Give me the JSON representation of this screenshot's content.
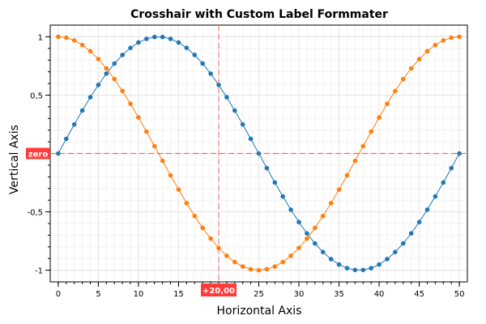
{
  "chart_data": {
    "type": "line",
    "title": "Crosshair with Custom Label Formmater",
    "xlabel": "Horizontal Axis",
    "ylabel": "Vertical Axis",
    "xlim": [
      -1,
      51
    ],
    "ylim": [
      -1.1,
      1.1
    ],
    "x_ticks": [
      0,
      5,
      10,
      15,
      20,
      25,
      30,
      35,
      40,
      45,
      50
    ],
    "x_tick_labels": [
      "0",
      "5",
      "10",
      "15",
      "",
      "25",
      "30",
      "35",
      "40",
      "45",
      "50"
    ],
    "y_ticks": [
      -1,
      -0.5,
      0,
      0.5,
      1
    ],
    "y_tick_labels": [
      "-1",
      "-0,5",
      "",
      "0,5",
      "1"
    ],
    "grid": true,
    "x": [
      0,
      1,
      2,
      3,
      4,
      5,
      6,
      7,
      8,
      9,
      10,
      11,
      12,
      13,
      14,
      15,
      16,
      17,
      18,
      19,
      20,
      21,
      22,
      23,
      24,
      25,
      26,
      27,
      28,
      29,
      30,
      31,
      32,
      33,
      34,
      35,
      36,
      37,
      38,
      39,
      40,
      41,
      42,
      43,
      44,
      45,
      46,
      47,
      48,
      49,
      50
    ],
    "series": [
      {
        "color": "#1f77b4",
        "values": [
          0,
          0.1253,
          0.2487,
          0.3681,
          0.4818,
          0.5878,
          0.6845,
          0.7705,
          0.8443,
          0.9048,
          0.9511,
          0.9823,
          0.998,
          0.998,
          0.9823,
          0.9511,
          0.9048,
          0.8443,
          0.7705,
          0.6845,
          0.5878,
          0.4818,
          0.3681,
          0.2487,
          0.1253,
          0,
          -0.1253,
          -0.2487,
          -0.3681,
          -0.4818,
          -0.5878,
          -0.6845,
          -0.7705,
          -0.8443,
          -0.9048,
          -0.9511,
          -0.9823,
          -0.998,
          -0.998,
          -0.9823,
          -0.9511,
          -0.9048,
          -0.8443,
          -0.7705,
          -0.6845,
          -0.5878,
          -0.4818,
          -0.3681,
          -0.2487,
          -0.1253,
          0
        ]
      },
      {
        "color": "#ff7f0e",
        "values": [
          1,
          0.9921,
          0.9686,
          0.9298,
          0.8763,
          0.809,
          0.729,
          0.6374,
          0.5358,
          0.4258,
          0.309,
          0.1874,
          0.0628,
          -0.0628,
          -0.1874,
          -0.309,
          -0.4258,
          -0.5358,
          -0.6374,
          -0.729,
          -0.809,
          -0.8763,
          -0.9298,
          -0.9686,
          -0.9921,
          -1,
          -0.9921,
          -0.9686,
          -0.9298,
          -0.8763,
          -0.809,
          -0.729,
          -0.6374,
          -0.5358,
          -0.4258,
          -0.309,
          -0.1874,
          -0.0628,
          0.0628,
          0.1874,
          0.309,
          0.4258,
          0.5358,
          0.6374,
          0.729,
          0.809,
          0.8763,
          0.9298,
          0.9686,
          0.9921,
          1
        ]
      }
    ],
    "crosshair": {
      "x": 20,
      "y": 0,
      "x_label": "+20,00",
      "y_label": "zero",
      "color": "#ff3b3b"
    }
  }
}
